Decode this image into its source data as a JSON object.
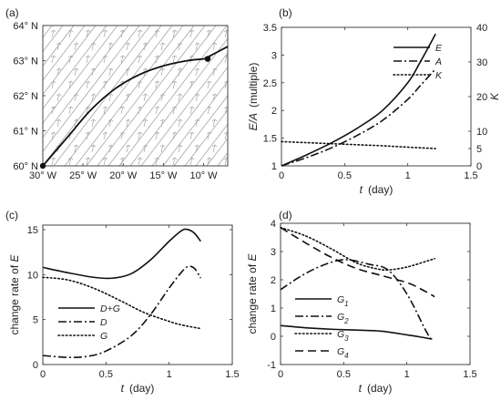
{
  "chart_data": [
    {
      "panel": "(a)",
      "type": "map",
      "x_ticks": [
        "30° W",
        "25° W",
        "20° W",
        "15° W",
        "10° W"
      ],
      "y_ticks": [
        "60° N",
        "61° N",
        "62° N",
        "63° N",
        "64° N"
      ],
      "xlim": [
        -30,
        -7
      ],
      "ylim": [
        60,
        64
      ],
      "track": {
        "lon": [
          -30,
          -27,
          -24,
          -21,
          -18,
          -15,
          -12,
          -10,
          -9.5,
          -7
        ],
        "lat": [
          60,
          60.8,
          61.6,
          62.2,
          62.6,
          62.85,
          63.0,
          63.05,
          63.1,
          63.4
        ]
      },
      "markers": [
        {
          "lon": -30,
          "lat": 60
        },
        {
          "lon": -9.5,
          "lat": 63.05
        }
      ],
      "background": "diagonal streamlines with small vector glyphs"
    },
    {
      "panel": "(b)",
      "type": "line",
      "xlabel": "t",
      "xlabel_unit": "(day)",
      "ylabel": "E/A",
      "ylabel_unit": "(multiple)",
      "ylabel_right": "K",
      "xlim": [
        0,
        1.5
      ],
      "ylim": [
        1,
        3.5
      ],
      "ylim_right": [
        0,
        40
      ],
      "x_ticks": [
        "0",
        "0.5",
        "1",
        "1.5"
      ],
      "y_ticks": [
        "1",
        "1.5",
        "2",
        "2.5",
        "3",
        "3.5"
      ],
      "y_ticks_right": [
        "0",
        "5",
        "10",
        "20",
        "30",
        "40"
      ],
      "legend_position": "top-right",
      "series": [
        {
          "name": "E",
          "style": "solid",
          "axis": "left",
          "x": [
            0,
            0.2,
            0.4,
            0.6,
            0.8,
            1.0,
            1.1,
            1.22
          ],
          "y": [
            1.0,
            1.2,
            1.42,
            1.68,
            2.0,
            2.5,
            2.88,
            3.38
          ]
        },
        {
          "name": "A",
          "style": "dashdot",
          "axis": "left",
          "x": [
            0,
            0.2,
            0.4,
            0.6,
            0.8,
            1.0,
            1.1,
            1.22
          ],
          "y": [
            1.0,
            1.15,
            1.33,
            1.55,
            1.82,
            2.2,
            2.45,
            2.75
          ]
        },
        {
          "name": "K",
          "style": "dotted",
          "axis": "right",
          "x": [
            0,
            0.2,
            0.4,
            0.6,
            0.8,
            1.0,
            1.22
          ],
          "y": [
            7.0,
            6.7,
            6.4,
            6.1,
            5.8,
            5.4,
            5.0
          ]
        }
      ]
    },
    {
      "panel": "(c)",
      "type": "line",
      "xlabel": "t",
      "xlabel_unit": "(day)",
      "ylabel": "change rate of E",
      "xlim": [
        0,
        1.5
      ],
      "ylim": [
        0,
        15.5
      ],
      "x_ticks": [
        "0",
        "0.5",
        "1",
        "1.5"
      ],
      "y_ticks": [
        "0",
        "5",
        "10",
        "15"
      ],
      "legend_position": "bottom-left",
      "series": [
        {
          "name": "D+G",
          "style": "solid",
          "x": [
            0,
            0.2,
            0.4,
            0.55,
            0.7,
            0.85,
            1.0,
            1.1,
            1.15,
            1.2,
            1.25
          ],
          "y": [
            10.8,
            10.2,
            9.7,
            9.6,
            10.1,
            11.6,
            13.7,
            14.9,
            15.0,
            14.6,
            13.7
          ]
        },
        {
          "name": "D",
          "style": "dashdot",
          "x": [
            0,
            0.2,
            0.35,
            0.5,
            0.7,
            0.85,
            1.0,
            1.1,
            1.15,
            1.2,
            1.25
          ],
          "y": [
            1.0,
            0.8,
            0.9,
            1.5,
            3.2,
            5.5,
            8.5,
            10.3,
            10.9,
            10.7,
            9.6
          ]
        },
        {
          "name": "G",
          "style": "dotted",
          "x": [
            0,
            0.2,
            0.4,
            0.6,
            0.8,
            1.0,
            1.1,
            1.25
          ],
          "y": [
            9.7,
            9.4,
            8.5,
            7.2,
            5.8,
            4.8,
            4.4,
            4.0
          ]
        }
      ]
    },
    {
      "panel": "(d)",
      "type": "line",
      "xlabel": "t",
      "xlabel_unit": "(day)",
      "ylabel": "change rate of E",
      "xlim": [
        0,
        1.5
      ],
      "ylim": [
        -1,
        4
      ],
      "x_ticks": [
        "0",
        "0.5",
        "1",
        "1.5"
      ],
      "y_ticks": [
        "-1",
        "0",
        "1",
        "2",
        "3",
        "4"
      ],
      "legend_position": "bottom-left",
      "series": [
        {
          "name": "G",
          "sub": "1",
          "style": "solid",
          "x": [
            0,
            0.2,
            0.4,
            0.6,
            0.8,
            1.0,
            1.1,
            1.2
          ],
          "y": [
            0.38,
            0.3,
            0.25,
            0.22,
            0.18,
            0.05,
            -0.02,
            -0.1
          ]
        },
        {
          "name": "G",
          "sub": "2",
          "style": "dashdot",
          "x": [
            0,
            0.15,
            0.3,
            0.45,
            0.55,
            0.7,
            0.85,
            1.0,
            1.15,
            1.2
          ],
          "y": [
            1.65,
            2.1,
            2.45,
            2.68,
            2.7,
            2.55,
            2.35,
            1.5,
            0.2,
            -0.15
          ]
        },
        {
          "name": "G",
          "sub": "3",
          "style": "dotted",
          "x": [
            0,
            0.2,
            0.4,
            0.6,
            0.75,
            0.85,
            1.0,
            1.15,
            1.22
          ],
          "y": [
            3.85,
            3.55,
            3.1,
            2.6,
            2.4,
            2.35,
            2.45,
            2.65,
            2.75
          ]
        },
        {
          "name": "G",
          "sub": "4",
          "style": "dashed",
          "x": [
            0,
            0.2,
            0.4,
            0.6,
            0.8,
            1.0,
            1.1,
            1.22
          ],
          "y": [
            3.85,
            3.3,
            2.8,
            2.4,
            2.15,
            1.9,
            1.7,
            1.4
          ]
        }
      ]
    }
  ]
}
